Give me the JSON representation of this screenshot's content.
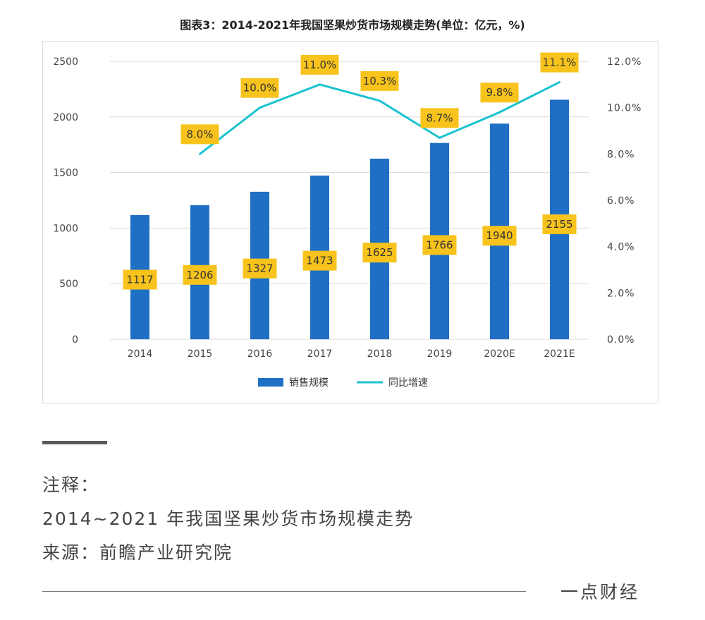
{
  "colors": {
    "bar": "#1f6fc5",
    "line": "#1bc3cf",
    "label_bg": "#f7c31c",
    "gridline": "#d9d9d9"
  },
  "chart_data": {
    "type": "bar",
    "title": "图表3：2014-2021年我国坚果炒货市场规模走势(单位：亿元，%)",
    "categories": [
      "2014",
      "2015",
      "2016",
      "2017",
      "2018",
      "2019",
      "2020E",
      "2021E"
    ],
    "series": [
      {
        "name": "销售规模",
        "type": "bar",
        "axis": "left",
        "values": [
          1117,
          1206,
          1327,
          1473,
          1625,
          1766,
          1940,
          2155
        ],
        "labels": [
          "1117",
          "1206",
          "1327",
          "1473",
          "1625",
          "1766",
          "1940",
          "2155"
        ]
      },
      {
        "name": "同比增速",
        "type": "line",
        "axis": "right",
        "values": [
          null,
          8.0,
          10.0,
          11.0,
          10.3,
          8.7,
          9.8,
          11.1
        ],
        "labels": [
          null,
          "8.0%",
          "10.0%",
          "11.0%",
          "10.3%",
          "8.7%",
          "9.8%",
          "11.1%"
        ]
      }
    ],
    "left_axis": {
      "ylim": [
        0,
        2500
      ],
      "ticks": [
        "0",
        "500",
        "1000",
        "1500",
        "2000",
        "2500"
      ]
    },
    "right_axis": {
      "ylim": [
        0,
        12
      ],
      "ticks": [
        "0.0%",
        "2.0%",
        "4.0%",
        "6.0%",
        "8.0%",
        "10.0%",
        "12.0%"
      ]
    },
    "grid": true,
    "legend_position": "bottom"
  },
  "notes": {
    "label": "注释：",
    "text": "2014~2021 年我国坚果炒货市场规模走势",
    "source": "来源：前瞻产业研究院"
  },
  "brand": "一点财经"
}
